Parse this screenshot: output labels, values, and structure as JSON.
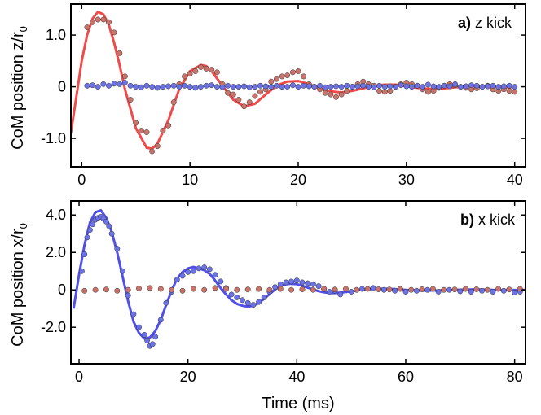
{
  "chart_data": [
    {
      "type": "scatter",
      "panel_label": "a)",
      "panel_title": "z kick",
      "ylabel": "CoM position z/r",
      "ylabel_subscript": "0",
      "xlabel": "",
      "xlim": [
        -1,
        41
      ],
      "ylim": [
        -1.55,
        1.6
      ],
      "xticks": [
        0,
        10,
        20,
        30,
        40
      ],
      "xtick_labels": [
        "0",
        "10",
        "20",
        "30",
        "40"
      ],
      "yticks": [
        1.0,
        0,
        -1.0
      ],
      "ytick_labels": [
        "1.0",
        "0",
        "-1.0"
      ],
      "legend": "none",
      "grid": false,
      "colors": {
        "fit": "#ef4b4b",
        "primary": "#c9736b",
        "transverse": "#6b72e8"
      },
      "fit": {
        "x": [
          -1,
          0,
          0.5,
          1,
          1.5,
          2,
          2.5,
          3,
          3.5,
          4,
          5,
          6,
          6.5,
          7,
          8,
          9,
          10,
          11,
          11.5,
          12,
          13,
          14,
          15,
          16,
          17,
          18,
          19,
          20,
          21,
          22,
          23,
          24,
          25,
          26,
          27,
          28,
          29,
          30,
          31,
          32,
          33,
          34,
          35,
          36,
          37,
          38,
          39,
          40
        ],
        "y": [
          -0.9,
          0.5,
          1.0,
          1.32,
          1.45,
          1.4,
          1.2,
          0.85,
          0.42,
          -0.05,
          -0.8,
          -1.18,
          -1.2,
          -1.1,
          -0.65,
          -0.05,
          0.3,
          0.42,
          0.4,
          0.3,
          0.02,
          -0.25,
          -0.38,
          -0.33,
          -0.15,
          0.02,
          0.1,
          0.11,
          0.05,
          -0.03,
          -0.09,
          -0.11,
          -0.08,
          -0.03,
          0.02,
          0.04,
          0.04,
          0.01,
          -0.02,
          -0.04,
          -0.04,
          -0.02,
          0.0,
          0.01,
          0.01,
          0.0,
          -0.01,
          -0.01
        ]
      },
      "series": [
        {
          "role": "primary",
          "x": [
            0.5,
            1.0,
            1.5,
            2.0,
            2.5,
            3.0,
            3.5,
            4.0,
            4.5,
            5.0,
            5.5,
            6.0,
            6.5,
            7.0,
            7.5,
            8.0,
            8.5,
            9.0,
            9.5,
            10.0,
            10.5,
            11.0,
            11.5,
            12.0,
            12.5,
            13.0,
            13.5,
            14.0,
            14.5,
            15.0,
            15.5,
            16.0,
            16.5,
            17.0,
            17.5,
            18.0,
            18.5,
            19.0,
            19.5,
            20.0,
            20.5,
            21.0,
            21.5,
            22.0,
            22.5,
            23.0,
            23.5,
            24.0,
            24.5,
            25.0,
            25.5,
            26.0,
            26.5,
            27.0,
            27.5,
            28.0,
            28.5,
            29.0,
            29.5,
            30.0,
            30.5,
            31.0,
            31.5,
            32.0,
            32.5,
            33.0,
            33.5,
            34.0,
            34.5,
            35.0,
            35.5,
            36.0,
            36.5,
            37.0,
            37.5,
            38.0,
            38.5,
            39.0,
            39.5,
            40.0
          ],
          "y": [
            1.15,
            1.25,
            1.3,
            1.3,
            1.25,
            1.05,
            0.65,
            0.2,
            -0.25,
            -0.7,
            -0.85,
            -0.88,
            -1.25,
            -1.15,
            -0.85,
            -0.75,
            -0.3,
            0.05,
            0.2,
            0.25,
            0.3,
            0.38,
            0.35,
            0.33,
            0.28,
            0.05,
            -0.12,
            -0.15,
            -0.25,
            -0.38,
            -0.3,
            -0.18,
            -0.1,
            -0.05,
            0.1,
            0.15,
            0.2,
            0.22,
            0.28,
            0.3,
            0.2,
            0.05,
            0.0,
            -0.05,
            -0.12,
            -0.15,
            -0.2,
            -0.15,
            -0.08,
            0.0,
            0.05,
            0.1,
            0.05,
            0.02,
            -0.08,
            -0.1,
            -0.08,
            0.0,
            0.05,
            0.08,
            0.05,
            0.02,
            -0.05,
            -0.1,
            -0.08,
            -0.02,
            0.02,
            0.05,
            0.03,
            0.0,
            -0.02,
            -0.05,
            -0.03,
            0.0,
            0.02,
            -0.05,
            -0.08,
            -0.05,
            -0.08,
            -0.1
          ]
        },
        {
          "role": "transverse",
          "x": [
            0.5,
            1.0,
            1.5,
            2.0,
            2.5,
            3.0,
            3.5,
            4.0,
            4.5,
            5.0,
            5.5,
            6.0,
            6.5,
            7.0,
            7.5,
            8.0,
            8.5,
            9.0,
            9.5,
            10.0,
            10.5,
            11.0,
            11.5,
            12.0,
            12.5,
            13.0,
            13.5,
            14.0,
            14.5,
            15.0,
            15.5,
            16.0,
            16.5,
            17.0,
            17.5,
            18.0,
            18.5,
            19.0,
            19.5,
            20.0,
            20.5,
            21.0,
            21.5,
            22.0,
            22.5,
            23.0,
            23.5,
            24.0,
            24.5,
            25.0,
            25.5,
            26.0,
            26.5,
            27.0,
            27.5,
            28.0,
            28.5,
            29.0,
            29.5,
            30.0,
            30.5,
            31.0,
            31.5,
            32.0,
            32.5,
            33.0,
            33.5,
            34.0,
            34.5,
            35.0,
            35.5,
            36.0,
            36.5,
            37.0,
            37.5,
            38.0,
            38.5,
            39.0,
            39.5,
            40.0
          ],
          "y": [
            0.02,
            0.03,
            0.0,
            0.05,
            0.02,
            0.06,
            0.05,
            0.08,
            0.02,
            0.0,
            -0.01,
            0.02,
            0.0,
            -0.02,
            0.0,
            0.01,
            0.02,
            0.0,
            0.02,
            0.0,
            -0.02,
            0.0,
            0.02,
            0.03,
            0.0,
            -0.01,
            0.02,
            0.0,
            0.0,
            0.01,
            -0.01,
            0.0,
            0.02,
            0.01,
            0.0,
            0.02,
            0.0,
            0.0,
            0.03,
            0.0,
            0.02,
            0.01,
            0.0,
            0.02,
            -0.01,
            0.0,
            0.01,
            0.0,
            0.02,
            0.0,
            0.01,
            0.02,
            0.0,
            -0.01,
            0.02,
            0.0,
            0.01,
            0.0,
            0.03,
            0.01,
            0.0,
            0.02,
            0.0,
            0.04,
            0.01,
            0.0,
            0.02,
            0.01,
            0.05,
            0.0,
            0.01,
            0.03,
            0.02,
            0.0,
            0.01,
            0.02,
            0.0,
            0.01,
            0.02,
            0.0
          ]
        }
      ]
    },
    {
      "type": "scatter",
      "panel_label": "b)",
      "panel_title": "x kick",
      "ylabel": "CoM position x/r",
      "ylabel_subscript": "0",
      "xlabel": "Time (ms)",
      "xlim": [
        -1.5,
        82
      ],
      "ylim": [
        -3.95,
        4.75
      ],
      "xticks": [
        0,
        20,
        40,
        60,
        80
      ],
      "xtick_labels": [
        "0",
        "20",
        "40",
        "60",
        "80"
      ],
      "yticks": [
        4.0,
        2.0,
        0,
        -2.0
      ],
      "ytick_labels": [
        "4.0",
        "2.0",
        "0",
        "-2.0"
      ],
      "legend": "none",
      "grid": false,
      "colors": {
        "fit": "#5050e8",
        "primary": "#6b72e8",
        "transverse": "#c9736b"
      },
      "fit": {
        "x": [
          -1,
          0,
          1,
          2,
          3,
          4,
          5,
          6,
          7,
          8,
          9,
          10,
          11,
          12,
          13,
          14,
          15,
          16,
          17,
          18,
          19,
          20,
          21,
          22,
          23,
          24,
          25,
          26,
          27,
          28,
          29,
          30,
          31,
          32,
          33,
          34,
          35,
          36,
          37,
          38,
          39,
          40,
          41,
          42,
          43,
          44,
          45,
          46,
          47,
          48,
          50,
          52,
          54,
          56,
          58,
          60,
          62,
          64,
          66,
          68,
          70,
          72,
          74,
          76,
          78,
          80,
          82
        ],
        "y": [
          -1.0,
          0.8,
          2.4,
          3.6,
          4.15,
          4.25,
          3.85,
          3.1,
          2.0,
          0.7,
          -0.6,
          -1.7,
          -2.3,
          -2.6,
          -2.55,
          -2.2,
          -1.6,
          -0.8,
          -0.05,
          0.6,
          0.95,
          1.15,
          1.22,
          1.15,
          1.05,
          0.85,
          0.5,
          0.1,
          -0.25,
          -0.55,
          -0.75,
          -0.85,
          -0.9,
          -0.85,
          -0.7,
          -0.48,
          -0.22,
          0.02,
          0.2,
          0.3,
          0.33,
          0.3,
          0.22,
          0.12,
          0.02,
          -0.07,
          -0.13,
          -0.17,
          -0.17,
          -0.15,
          -0.08,
          0.0,
          0.05,
          0.06,
          0.04,
          0.0,
          -0.03,
          -0.04,
          -0.03,
          -0.01,
          0.01,
          0.02,
          0.02,
          0.0,
          -0.01,
          -0.01,
          0.0
        ]
      },
      "series": [
        {
          "role": "primary",
          "x": [
            0.5,
            1,
            1.5,
            2,
            2.5,
            3,
            3.5,
            4,
            4.5,
            5,
            5.5,
            6,
            7,
            8,
            9,
            10,
            11,
            12,
            12.5,
            13,
            13.5,
            14,
            15,
            16,
            17,
            18,
            19,
            20,
            21,
            22,
            23,
            24,
            25,
            26,
            27,
            28,
            29,
            30,
            31,
            32,
            33,
            34,
            35,
            36,
            37,
            38,
            39,
            40,
            41,
            42,
            43,
            44,
            45,
            46,
            47,
            48,
            50,
            52,
            54,
            56,
            58,
            60,
            62,
            64,
            66,
            68,
            70,
            72,
            74,
            76,
            78,
            80,
            81
          ],
          "y": [
            1.0,
            1.9,
            2.8,
            3.2,
            3.5,
            3.75,
            3.85,
            3.9,
            3.8,
            3.65,
            3.4,
            3.0,
            2.2,
            1.0,
            -0.3,
            -1.3,
            -2.0,
            -2.4,
            -2.7,
            -3.0,
            -2.9,
            -2.5,
            -1.6,
            -0.7,
            -0.1,
            0.55,
            0.75,
            0.95,
            1.0,
            1.15,
            1.2,
            1.1,
            0.8,
            0.45,
            0.1,
            -0.25,
            -0.4,
            -0.55,
            -0.7,
            -0.8,
            -0.65,
            -0.4,
            -0.1,
            0.15,
            0.3,
            0.4,
            0.45,
            0.5,
            0.4,
            0.35,
            0.3,
            0.2,
            0.05,
            -0.1,
            -0.05,
            -0.25,
            -0.1,
            0.05,
            0.1,
            0.0,
            -0.05,
            -0.1,
            -0.05,
            0.0,
            -0.1,
            0.0,
            -0.08,
            -0.1,
            -0.05,
            -0.1,
            -0.05,
            -0.15,
            -0.1
          ]
        },
        {
          "role": "transverse",
          "x": [
            1,
            3,
            5,
            7,
            9,
            11,
            13,
            15,
            17,
            19,
            21,
            23,
            25,
            27,
            29,
            31,
            33,
            35,
            37,
            39,
            41,
            43,
            45,
            47,
            49,
            51,
            53,
            55,
            57,
            59,
            61,
            63,
            65,
            67,
            69,
            71,
            73,
            75,
            77,
            79,
            81
          ],
          "y": [
            -0.05,
            0.0,
            0.02,
            -0.05,
            0.0,
            0.08,
            0.1,
            0.05,
            0.0,
            -0.05,
            0.05,
            0.0,
            0.1,
            0.05,
            0.0,
            0.02,
            0.05,
            0.0,
            0.05,
            0.0,
            0.03,
            0.0,
            0.05,
            0.02,
            0.05,
            0.0,
            0.05,
            0.03,
            0.02,
            0.05,
            0.0,
            0.03,
            0.05,
            0.0,
            0.02,
            0.05,
            0.03,
            0.0,
            0.05,
            0.02,
            0.05
          ]
        }
      ]
    }
  ]
}
